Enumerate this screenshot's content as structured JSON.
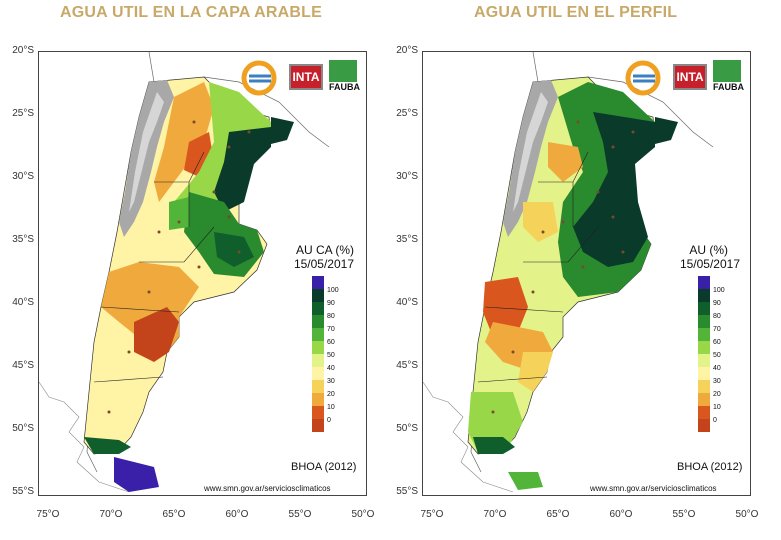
{
  "left": {
    "title": "AGUA UTIL EN LA CAPA ARABLE",
    "legend_title": "AU CA (%)",
    "date": "15/05/2017"
  },
  "right": {
    "title": "AGUA UTIL EN EL PERFIL",
    "legend_title": "AU (%)",
    "date": "15/05/2017"
  },
  "y_labels": [
    "20°S",
    "25°S",
    "30°S",
    "35°S",
    "40°S",
    "45°S",
    "50°S",
    "55°S"
  ],
  "x_labels": [
    "75°O",
    "70°O",
    "65°O",
    "60°O",
    "55°O",
    "50°O"
  ],
  "legend_values": [
    "100",
    "90",
    "80",
    "70",
    "60",
    "50",
    "40",
    "30",
    "20",
    "10",
    "0"
  ],
  "legend_colors": [
    "#3a1fa8",
    "#0a3a2a",
    "#0f5e2c",
    "#2a8a2e",
    "#52b53a",
    "#98d848",
    "#e4f28a",
    "#fff3a6",
    "#f5d25a",
    "#f0a93c",
    "#d9561e",
    "#c3431a"
  ],
  "model_label": "BHOA (2012)",
  "source_url": "www.smn.gov.ar/serviciosclimaticos",
  "logos": {
    "inta": "INTA",
    "fauba": "FAUBA"
  }
}
